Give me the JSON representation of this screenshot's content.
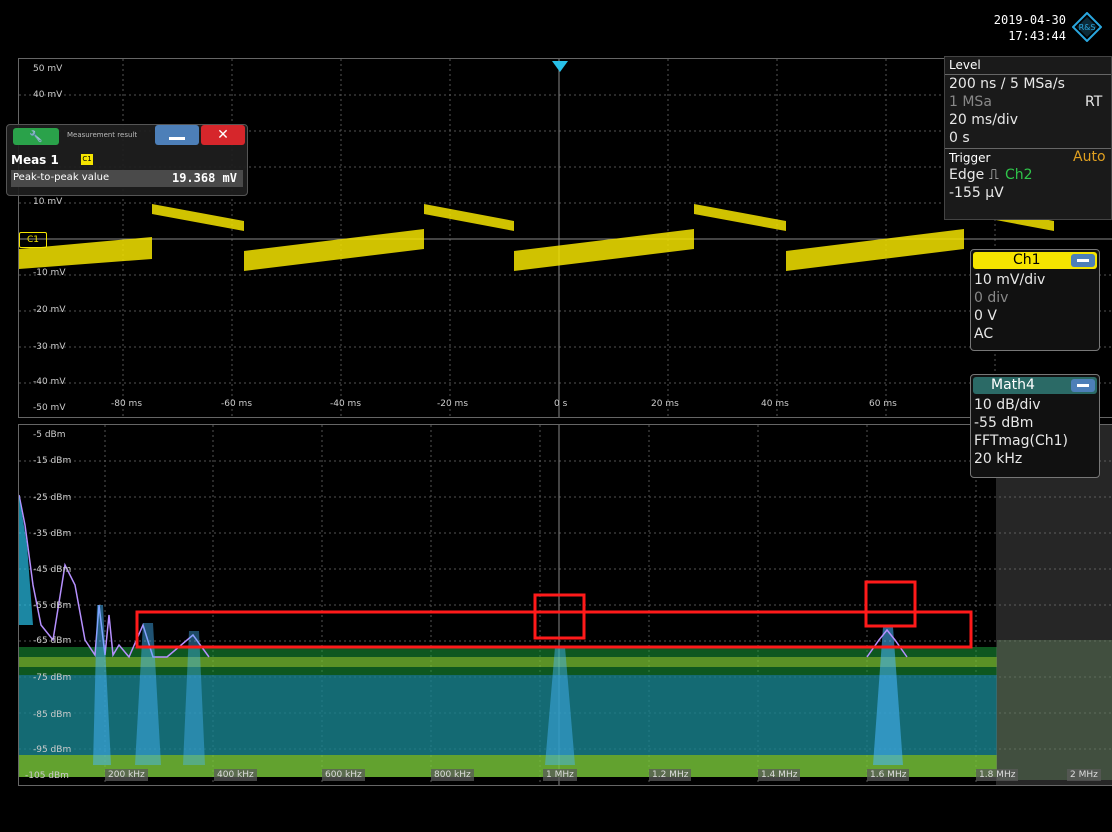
{
  "header": {
    "date": "2019-04-30",
    "time": "17:43:44",
    "logo_text": "R&S"
  },
  "waveform": {
    "y_labels": [
      "50 mV",
      "40 mV",
      "10 mV",
      "-10 mV",
      "-20 mV",
      "-30 mV",
      "-40 mV",
      "-50 mV"
    ],
    "ch_marker": "C1",
    "x_labels": [
      "-80 ms",
      "-60 ms",
      "-40 ms",
      "-20 ms",
      "0 s",
      "20 ms",
      "40 ms",
      "60 ms"
    ]
  },
  "spectrum": {
    "y_labels": [
      "-5 dBm",
      "-15 dBm",
      "-25 dBm",
      "-35 dBm",
      "-45 dBm",
      "-55 dBm",
      "-65 dBm",
      "-75 dBm",
      "-85 dBm",
      "-95 dBm",
      "-105 dBm"
    ],
    "x_labels": [
      "200 kHz",
      "400 kHz",
      "600 kHz",
      "800 kHz",
      "1 MHz",
      "1.2 MHz",
      "1.4 MHz",
      "1.6 MHz",
      "1.8 MHz",
      "2 MHz"
    ]
  },
  "measurement": {
    "title": "Measurement result",
    "name": "Meas 1",
    "source": "C1",
    "parameter": "Peak-to-peak value",
    "value": "19.368 mV"
  },
  "timebase": {
    "header": "Level",
    "resolution": "200 ns / 5 MSa/s",
    "record_length": "1 MSa",
    "mode": "RT",
    "scale": "20 ms/div",
    "position": "0 s"
  },
  "trigger": {
    "header": "Trigger",
    "mode": "Auto",
    "type": "Edge",
    "source": "Ch2",
    "level": "-155 µV"
  },
  "ch1": {
    "title": "Ch1",
    "scale": "10 mV/div",
    "position": "0 div",
    "offset": "0 V",
    "coupling": "AC"
  },
  "math4": {
    "title": "Math4",
    "scale": "10 dB/div",
    "ref": "-55 dBm",
    "function": "FFTmag(Ch1)",
    "rbw": "20 kHz"
  },
  "colors": {
    "ch1": "#f5e400",
    "highlight": "#ff1a1a",
    "accent": "#28a9e0",
    "math": "#2b6a66"
  }
}
